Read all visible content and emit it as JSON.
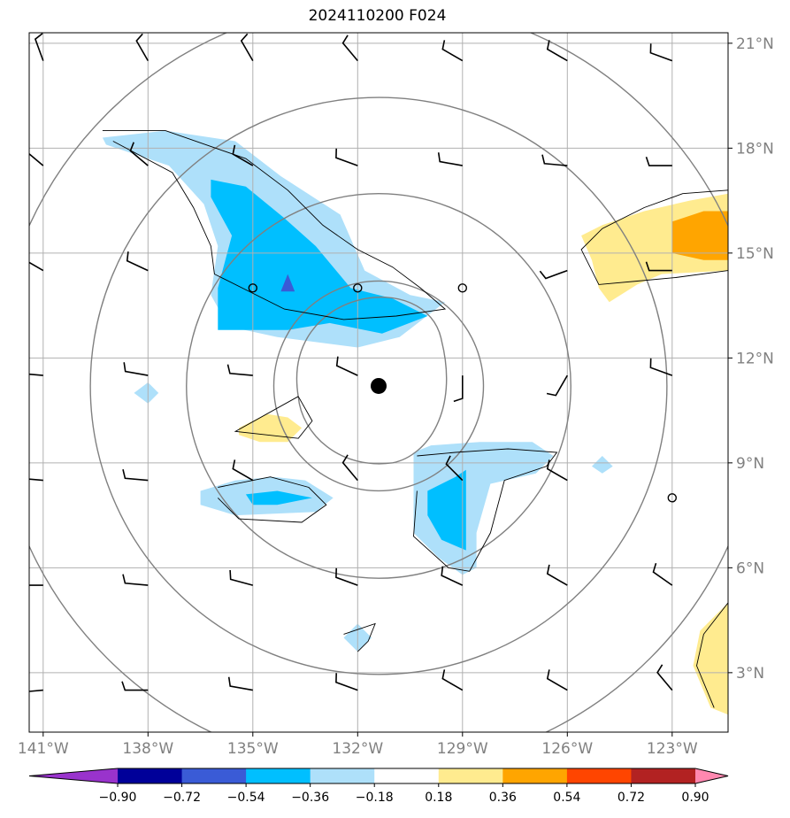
{
  "chart_data": {
    "type": "map-contour",
    "title": "2024110200 F024",
    "xaxis": {
      "range": [
        141.4,
        121.4
      ],
      "ticks": [
        141,
        138,
        135,
        132,
        129,
        126,
        123
      ],
      "tick_labels": [
        "141°W",
        "138°W",
        "135°W",
        "132°W",
        "129°W",
        "126°W",
        "123°W"
      ]
    },
    "yaxis": {
      "range": [
        1.3,
        21.3
      ],
      "ticks": [
        3,
        6,
        9,
        12,
        15,
        18,
        21
      ],
      "tick_labels": [
        "3°N",
        "6°N",
        "9°N",
        "12°N",
        "15°N",
        "18°N",
        "21°N"
      ]
    },
    "grid": true,
    "center": {
      "lon": 131.4,
      "lat": 11.2
    },
    "range_rings_deg": [
      3,
      5.5,
      8.25,
      11
    ],
    "colorbar": {
      "boundaries": [
        -0.9,
        -0.72,
        -0.54,
        -0.36,
        -0.18,
        0.18,
        0.36,
        0.54,
        0.72,
        0.9
      ],
      "labels": [
        "−0.90",
        "−0.72",
        "−0.54",
        "−0.36",
        "−0.18",
        "0.18",
        "0.36",
        "0.54",
        "0.72",
        "0.90"
      ],
      "colors": [
        "#9933cc",
        "#000099",
        "#3a5bd6",
        "#00bfff",
        "#aee0fa",
        "#ffffff",
        "#ffeb8f",
        "#ffa500",
        "#ff4500",
        "#b22222",
        "#ff88b0"
      ]
    },
    "shaded_regions": [
      {
        "level": "-0.36..-0.18",
        "color": "#aee0fa",
        "points": [
          [
            139.3,
            18.3
          ],
          [
            137.5,
            18.5
          ],
          [
            135.5,
            18.2
          ],
          [
            134.2,
            17.2
          ],
          [
            132.5,
            16.1
          ],
          [
            131.8,
            14.5
          ],
          [
            130.5,
            13.8
          ],
          [
            129.5,
            13.6
          ],
          [
            130.8,
            12.6
          ],
          [
            132,
            12.3
          ],
          [
            134.3,
            12.6
          ],
          [
            135.7,
            12.9
          ],
          [
            136.2,
            13.8
          ],
          [
            136.0,
            15.2
          ],
          [
            136.4,
            16.4
          ],
          [
            137.4,
            17.5
          ],
          [
            139.2,
            18.1
          ]
        ]
      },
      {
        "level": "-0.54..-0.36",
        "color": "#00bfff",
        "points": [
          [
            136.2,
            17.1
          ],
          [
            135.2,
            16.9
          ],
          [
            134.1,
            16.0
          ],
          [
            133.2,
            15.2
          ],
          [
            132.2,
            14.0
          ],
          [
            131.0,
            13.7
          ],
          [
            130.0,
            13.2
          ],
          [
            131.3,
            12.7
          ],
          [
            132.8,
            13.0
          ],
          [
            134.0,
            12.8
          ],
          [
            136.0,
            12.8
          ],
          [
            136.0,
            14.0
          ],
          [
            135.6,
            15.5
          ],
          [
            136.2,
            16.6
          ]
        ]
      },
      {
        "level": "-0.72..-0.54",
        "color": "#3a5bd6",
        "points": [
          [
            134.0,
            14.4
          ],
          [
            133.8,
            13.9
          ],
          [
            134.2,
            13.9
          ]
        ]
      },
      {
        "level": "-0.36..-0.18",
        "color": "#aee0fa",
        "points": [
          [
            138.4,
            11.0
          ],
          [
            138.0,
            10.7
          ],
          [
            137.7,
            11.0
          ],
          [
            138.0,
            11.3
          ]
        ]
      },
      {
        "level": "-0.36..-0.18",
        "color": "#aee0fa",
        "points": [
          [
            136.5,
            8.2
          ],
          [
            135.5,
            8.5
          ],
          [
            134.4,
            8.6
          ],
          [
            133.5,
            8.5
          ],
          [
            132.7,
            8.0
          ],
          [
            133.2,
            7.6
          ],
          [
            135.5,
            7.5
          ],
          [
            136.5,
            7.8
          ]
        ]
      },
      {
        "level": "-0.54..-0.36",
        "color": "#00bfff",
        "points": [
          [
            135.2,
            8.1
          ],
          [
            134.3,
            8.2
          ],
          [
            133.3,
            8.0
          ],
          [
            134.3,
            7.8
          ],
          [
            135.0,
            7.8
          ]
        ]
      },
      {
        "level": "-0.36..-0.18",
        "color": "#aee0fa",
        "points": [
          [
            130.4,
            9.3
          ],
          [
            129.9,
            9.5
          ],
          [
            128.5,
            9.6
          ],
          [
            127.0,
            9.6
          ],
          [
            126.4,
            9.2
          ],
          [
            126.9,
            8.7
          ],
          [
            128.2,
            8.4
          ],
          [
            128.6,
            7.0
          ],
          [
            128.6,
            6.0
          ],
          [
            129.0,
            5.8
          ],
          [
            129.7,
            6.3
          ],
          [
            130.4,
            7.0
          ],
          [
            130.4,
            8.0
          ]
        ]
      },
      {
        "level": "-0.54..-0.36",
        "color": "#00bfff",
        "points": [
          [
            130.0,
            8.2
          ],
          [
            129.2,
            8.6
          ],
          [
            128.9,
            8.8
          ],
          [
            128.9,
            6.5
          ],
          [
            129.6,
            6.8
          ],
          [
            130.0,
            7.5
          ]
        ]
      },
      {
        "level": "-0.36..-0.18",
        "color": "#aee0fa",
        "points": [
          [
            125.3,
            8.9
          ],
          [
            125.0,
            9.2
          ],
          [
            124.7,
            8.9
          ],
          [
            125.0,
            8.7
          ]
        ]
      },
      {
        "level": "-0.36..-0.18",
        "color": "#aee0fa",
        "points": [
          [
            132.4,
            4.0
          ],
          [
            132.0,
            4.4
          ],
          [
            131.6,
            4.0
          ],
          [
            132.0,
            3.6
          ]
        ]
      },
      {
        "level": "0.18..0.36",
        "color": "#ffeb8f",
        "points": [
          [
            135.4,
            10.0
          ],
          [
            134.6,
            10.4
          ],
          [
            134.0,
            10.3
          ],
          [
            133.6,
            10.0
          ],
          [
            134.0,
            9.6
          ],
          [
            134.8,
            9.6
          ],
          [
            135.4,
            9.8
          ]
        ]
      },
      {
        "level": "0.18..0.36",
        "color": "#ffeb8f",
        "points": [
          [
            121.4,
            16.7
          ],
          [
            122.5,
            16.5
          ],
          [
            123.8,
            16.2
          ],
          [
            125.0,
            15.8
          ],
          [
            125.6,
            15.5
          ],
          [
            125.3,
            14.8
          ],
          [
            125.1,
            14.0
          ],
          [
            124.8,
            13.6
          ],
          [
            124.0,
            14.1
          ],
          [
            123.3,
            14.4
          ],
          [
            121.4,
            14.5
          ]
        ]
      },
      {
        "level": "0.36..0.54",
        "color": "#ffa500",
        "points": [
          [
            121.4,
            16.2
          ],
          [
            122.1,
            16.2
          ],
          [
            123.0,
            15.9
          ],
          [
            123.0,
            15.0
          ],
          [
            122.1,
            14.8
          ],
          [
            121.4,
            14.8
          ]
        ]
      },
      {
        "level": "0.18..0.36",
        "color": "#ffeb8f",
        "points": [
          [
            121.4,
            5.0
          ],
          [
            122.2,
            4.2
          ],
          [
            122.4,
            3.2
          ],
          [
            121.9,
            2.0
          ],
          [
            121.4,
            1.8
          ]
        ]
      }
    ],
    "contour_lines": [
      [
        [
          139.3,
          18.5
        ],
        [
          137.5,
          18.5
        ],
        [
          135.2,
          17.7
        ],
        [
          134.0,
          16.8
        ],
        [
          133.0,
          15.8
        ],
        [
          132.0,
          15.1
        ],
        [
          131.0,
          14.6
        ],
        [
          130.2,
          14.0
        ],
        [
          129.5,
          13.4
        ],
        [
          130.9,
          13.2
        ],
        [
          132.4,
          13.1
        ],
        [
          134.1,
          13.4
        ],
        [
          136.1,
          14.4
        ],
        [
          136.2,
          15.2
        ],
        [
          136.7,
          16.3
        ],
        [
          137.3,
          17.3
        ],
        [
          139.0,
          18.2
        ]
      ],
      [
        [
          133.7,
          10.9
        ],
        [
          133.3,
          10.2
        ],
        [
          133.7,
          9.7
        ],
        [
          135.5,
          9.9
        ],
        [
          133.7,
          10.9
        ]
      ],
      [
        [
          136.0,
          8.3
        ],
        [
          134.5,
          8.6
        ],
        [
          133.4,
          8.3
        ],
        [
          132.9,
          7.8
        ],
        [
          133.6,
          7.3
        ],
        [
          135.4,
          7.4
        ],
        [
          136.0,
          8.0
        ]
      ],
      [
        [
          130.3,
          9.2
        ],
        [
          129.2,
          9.3
        ],
        [
          127.7,
          9.4
        ],
        [
          126.3,
          9.3
        ],
        [
          126.6,
          8.9
        ],
        [
          127.8,
          8.5
        ],
        [
          128.2,
          7.0
        ],
        [
          128.8,
          5.9
        ],
        [
          129.4,
          6.0
        ],
        [
          130.4,
          6.9
        ],
        [
          130.3,
          8.2
        ]
      ],
      [
        [
          132.4,
          4.1
        ],
        [
          131.5,
          4.4
        ],
        [
          131.7,
          3.9
        ],
        [
          132.0,
          3.6
        ]
      ],
      [
        [
          121.4,
          16.8
        ],
        [
          122.7,
          16.7
        ],
        [
          123.8,
          16.3
        ],
        [
          125.0,
          15.7
        ],
        [
          125.6,
          15.1
        ],
        [
          125.1,
          14.1
        ],
        [
          124.0,
          14.2
        ],
        [
          122.9,
          14.3
        ],
        [
          121.4,
          14.5
        ]
      ],
      [
        [
          121.4,
          5.0
        ],
        [
          122.1,
          4.1
        ],
        [
          122.3,
          3.2
        ],
        [
          121.8,
          2.0
        ]
      ]
    ],
    "wind_barbs": [
      {
        "lon": 141,
        "lat": 20.5,
        "dir": 340
      },
      {
        "lon": 138,
        "lat": 20.5,
        "dir": 330
      },
      {
        "lon": 135,
        "lat": 20.5,
        "dir": 330
      },
      {
        "lon": 132,
        "lat": 20.5,
        "dir": 320
      },
      {
        "lon": 129,
        "lat": 20.5,
        "dir": 300
      },
      {
        "lon": 126,
        "lat": 20.5,
        "dir": 300
      },
      {
        "lon": 123,
        "lat": 20.5,
        "dir": 290
      },
      {
        "lon": 141,
        "lat": 17.5,
        "dir": 310
      },
      {
        "lon": 138,
        "lat": 17.5,
        "dir": 310
      },
      {
        "lon": 135,
        "lat": 17.5,
        "dir": 300
      },
      {
        "lon": 132,
        "lat": 17.5,
        "dir": 290
      },
      {
        "lon": 129,
        "lat": 17.5,
        "dir": 280
      },
      {
        "lon": 126,
        "lat": 17.5,
        "dir": 275
      },
      {
        "lon": 123,
        "lat": 17.5,
        "dir": 270
      },
      {
        "lon": 141,
        "lat": 14.5,
        "dir": 300
      },
      {
        "lon": 138,
        "lat": 14.5,
        "dir": 295
      },
      {
        "lon": 126,
        "lat": 14.5,
        "dir": 250
      },
      {
        "lon": 123,
        "lat": 14.5,
        "dir": 270
      },
      {
        "lon": 141,
        "lat": 11.5,
        "dir": 275
      },
      {
        "lon": 138,
        "lat": 11.5,
        "dir": 280
      },
      {
        "lon": 135,
        "lat": 11.5,
        "dir": 275
      },
      {
        "lon": 132,
        "lat": 11.5,
        "dir": 295
      },
      {
        "lon": 129,
        "lat": 11.5,
        "dir": 180
      },
      {
        "lon": 126,
        "lat": 11.5,
        "dir": 210
      },
      {
        "lon": 123,
        "lat": 11.5,
        "dir": 290
      },
      {
        "lon": 141,
        "lat": 8.5,
        "dir": 275
      },
      {
        "lon": 138,
        "lat": 8.5,
        "dir": 275
      },
      {
        "lon": 135,
        "lat": 8.5,
        "dir": 300
      },
      {
        "lon": 132,
        "lat": 8.5,
        "dir": 320
      },
      {
        "lon": 129,
        "lat": 8.5,
        "dir": 315
      },
      {
        "lon": 126,
        "lat": 8.5,
        "dir": 300
      },
      {
        "lon": 141,
        "lat": 5.5,
        "dir": 270
      },
      {
        "lon": 138,
        "lat": 5.5,
        "dir": 275
      },
      {
        "lon": 135,
        "lat": 5.5,
        "dir": 285
      },
      {
        "lon": 132,
        "lat": 5.5,
        "dir": 290
      },
      {
        "lon": 129,
        "lat": 5.5,
        "dir": 295
      },
      {
        "lon": 126,
        "lat": 5.5,
        "dir": 300
      },
      {
        "lon": 123,
        "lat": 5.5,
        "dir": 305
      },
      {
        "lon": 141,
        "lat": 2.5,
        "dir": 265
      },
      {
        "lon": 138,
        "lat": 2.5,
        "dir": 270
      },
      {
        "lon": 135,
        "lat": 2.5,
        "dir": 280
      },
      {
        "lon": 132,
        "lat": 2.5,
        "dir": 290
      },
      {
        "lon": 129,
        "lat": 2.5,
        "dir": 300
      },
      {
        "lon": 126,
        "lat": 2.5,
        "dir": 300
      },
      {
        "lon": 123,
        "lat": 2.5,
        "dir": 320
      }
    ],
    "calm_circles": [
      {
        "lon": 135,
        "lat": 14.0
      },
      {
        "lon": 132,
        "lat": 14.0
      },
      {
        "lon": 129,
        "lat": 14.0
      },
      {
        "lon": 123,
        "lat": 8.0
      }
    ]
  }
}
